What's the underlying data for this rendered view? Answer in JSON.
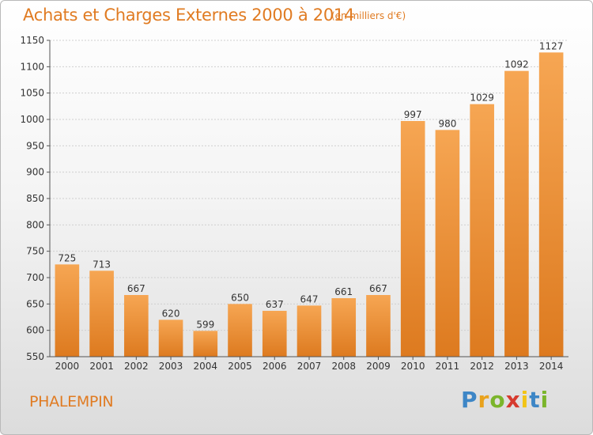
{
  "chart_data": {
    "type": "bar",
    "title": "Achats et Charges Externes 2000 à 2014",
    "subtitle": "(en milliers d'€)",
    "categories": [
      "2000",
      "2001",
      "2002",
      "2003",
      "2004",
      "2005",
      "2006",
      "2007",
      "2008",
      "2009",
      "2010",
      "2011",
      "2012",
      "2013",
      "2014"
    ],
    "values": [
      725,
      713,
      667,
      620,
      599,
      650,
      637,
      647,
      661,
      667,
      997,
      980,
      1029,
      1092,
      1127
    ],
    "ylim": [
      550,
      1150
    ],
    "yticks": [
      550,
      600,
      650,
      700,
      750,
      800,
      850,
      900,
      950,
      1000,
      1050,
      1100,
      1150
    ],
    "grid": true,
    "bar_color_top": "#f6a653",
    "bar_color_bottom": "#dd7a1f"
  },
  "footer": {
    "place": "PHALEMPIN"
  },
  "logo": {
    "letters": [
      "P",
      "r",
      "o",
      "x",
      "i",
      "t",
      "i"
    ],
    "colors": [
      "#3d86c6",
      "#e9a21d",
      "#7bb52b",
      "#d63a2e",
      "#f2c415",
      "#3d86c6",
      "#7bb52b"
    ]
  },
  "colors": {
    "accent": "#e07b22"
  }
}
